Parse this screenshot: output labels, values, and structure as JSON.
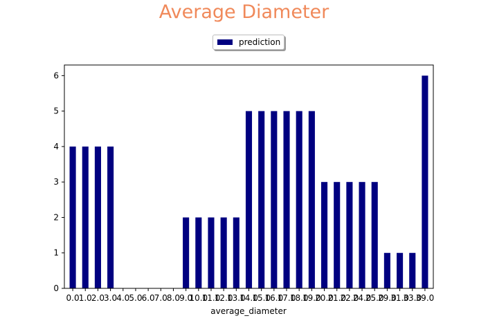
{
  "chart_data": {
    "type": "bar",
    "title": "Average Diameter",
    "xlabel": "average_diameter",
    "ylabel": "",
    "ylim": [
      0,
      6.3
    ],
    "yticks": [
      0,
      1,
      2,
      3,
      4,
      5,
      6
    ],
    "legend_position": "top-center",
    "grid": false,
    "categories": [
      "0.0",
      "1.0",
      "2.0",
      "3.0",
      "4.0",
      "5.0",
      "6.0",
      "7.0",
      "8.0",
      "9.0",
      "10.0",
      "11.0",
      "12.0",
      "13.0",
      "14.0",
      "15.0",
      "16.0",
      "17.0",
      "18.0",
      "19.0",
      "20.0",
      "21.0",
      "22.0",
      "24.0",
      "25.0",
      "29.0",
      "31.0",
      "33.0",
      "39.0"
    ],
    "series": [
      {
        "name": "prediction",
        "color": "#000080",
        "values": [
          4,
          4,
          4,
          4,
          0,
          0,
          0,
          0,
          0,
          2,
          2,
          2,
          2,
          2,
          5,
          5,
          5,
          5,
          5,
          5,
          3,
          3,
          3,
          3,
          3,
          1,
          1,
          1,
          6
        ]
      }
    ]
  },
  "colors": {
    "title": "#f0895a",
    "bar": "#000080",
    "axis": "#000000"
  }
}
